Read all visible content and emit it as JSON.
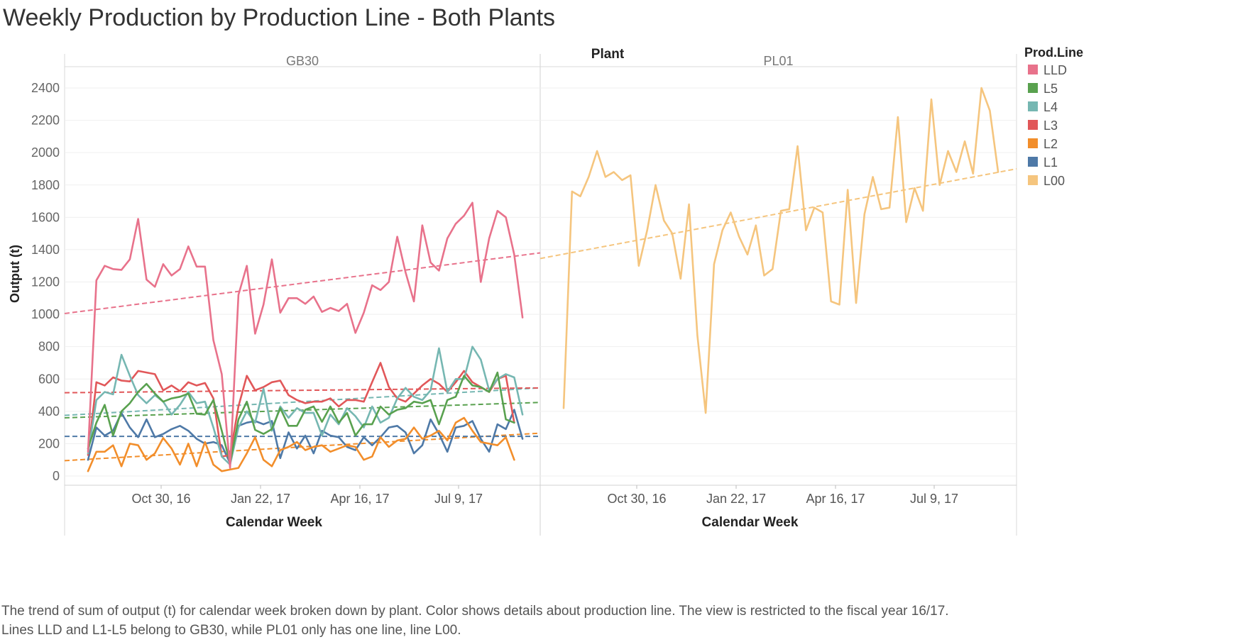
{
  "title": "Weekly Production by Production Line - Both Plants",
  "caption": {
    "line1": "The trend of sum of output (t) for calendar week broken down by plant.  Color shows details about production line. The view is restricted to the fiscal year 16/17.",
    "line2": "Lines LLD and L1-L5 belong to GB30, while PL01 only has one line, line L00."
  },
  "chart_data": {
    "type": "line",
    "column_header": "Plant",
    "panels": [
      "GB30",
      "PL01"
    ],
    "xlabel": "Calendar Week",
    "ylabel": "Output (t)",
    "ylim": [
      -55,
      2600
    ],
    "yticks": [
      0,
      200,
      400,
      600,
      800,
      1000,
      1200,
      1400,
      1600,
      1800,
      2000,
      2200,
      2400
    ],
    "xticks": [
      "Oct 30, 16",
      "Jan 22, 17",
      "Apr 16, 17",
      "Jul 9, 17"
    ],
    "legend_title": "Prod.Line",
    "legend_position": "right",
    "grid": true,
    "trend_lines": true,
    "series": [
      {
        "name": "LLD",
        "panel": 0,
        "color": "#e8728b",
        "values": [
          150,
          1210,
          1300,
          1280,
          1275,
          1340,
          1590,
          1215,
          1170,
          1310,
          1240,
          1280,
          1420,
          1295,
          1295,
          840,
          630,
          50,
          1120,
          1300,
          880,
          1060,
          1340,
          1010,
          1100,
          1100,
          1065,
          1110,
          1015,
          1040,
          1020,
          1065,
          885,
          1010,
          1180,
          1150,
          1200,
          1480,
          1260,
          1080,
          1550,
          1320,
          1270,
          1470,
          1560,
          1610,
          1690,
          1200,
          1470,
          1640,
          1600,
          1370,
          980
        ],
        "trend": [
          1005,
          1380
        ]
      },
      {
        "name": "L5",
        "panel": 0,
        "color": "#59a14f",
        "values": [
          170,
          330,
          440,
          250,
          400,
          450,
          520,
          570,
          510,
          460,
          480,
          490,
          510,
          385,
          380,
          470,
          280,
          80,
          350,
          460,
          285,
          260,
          290,
          420,
          310,
          310,
          410,
          430,
          335,
          430,
          330,
          390,
          250,
          320,
          320,
          430,
          380,
          410,
          420,
          460,
          450,
          470,
          320,
          470,
          490,
          620,
          560,
          550,
          520,
          640,
          350,
          330
        ],
        "trend": [
          360,
          455
        ]
      },
      {
        "name": "L4",
        "panel": 0,
        "color": "#76b7b2",
        "values": [
          140,
          470,
          520,
          505,
          750,
          620,
          500,
          450,
          500,
          460,
          380,
          440,
          520,
          450,
          460,
          300,
          120,
          70,
          300,
          400,
          330,
          540,
          280,
          430,
          360,
          420,
          390,
          390,
          250,
          380,
          320,
          420,
          370,
          300,
          430,
          330,
          360,
          480,
          545,
          490,
          470,
          530,
          790,
          520,
          600,
          600,
          800,
          720,
          530,
          600,
          630,
          610,
          380
        ],
        "trend": [
          375,
          545
        ]
      },
      {
        "name": "L3",
        "panel": 0,
        "color": "#e15759",
        "values": [
          130,
          580,
          560,
          610,
          590,
          585,
          650,
          640,
          630,
          530,
          560,
          525,
          580,
          560,
          575,
          480,
          120,
          130,
          430,
          620,
          530,
          550,
          580,
          590,
          500,
          470,
          450,
          460,
          460,
          480,
          430,
          470,
          470,
          460,
          580,
          700,
          550,
          480,
          460,
          510,
          560,
          600,
          570,
          520,
          580,
          650,
          580,
          550,
          520,
          600,
          620,
          330
        ],
        "trend": [
          515,
          545
        ]
      },
      {
        "name": "L2",
        "panel": 0,
        "color": "#f28e2b",
        "values": [
          30,
          150,
          150,
          190,
          60,
          200,
          190,
          100,
          140,
          235,
          170,
          70,
          200,
          60,
          210,
          70,
          30,
          40,
          50,
          140,
          240,
          100,
          60,
          160,
          180,
          210,
          160,
          180,
          190,
          150,
          170,
          190,
          180,
          100,
          120,
          240,
          180,
          220,
          230,
          300,
          230,
          250,
          280,
          220,
          330,
          360,
          280,
          210,
          200,
          190,
          240,
          100
        ],
        "trend": [
          95,
          265
        ]
      },
      {
        "name": "L1",
        "panel": 0,
        "color": "#4e79a7",
        "values": [
          100,
          300,
          250,
          280,
          390,
          300,
          240,
          350,
          240,
          260,
          290,
          310,
          280,
          230,
          200,
          210,
          190,
          80,
          310,
          330,
          340,
          320,
          340,
          110,
          270,
          170,
          250,
          140,
          280,
          250,
          240,
          180,
          160,
          240,
          190,
          240,
          300,
          310,
          270,
          140,
          190,
          350,
          260,
          150,
          300,
          310,
          340,
          230,
          150,
          320,
          290,
          410,
          230
        ],
        "trend": [
          245,
          245
        ]
      },
      {
        "name": "L00",
        "panel": 1,
        "color": "#f5c57e",
        "values": [
          420,
          1760,
          1730,
          1850,
          2010,
          1850,
          1880,
          1830,
          1860,
          1300,
          1520,
          1800,
          1580,
          1500,
          1220,
          1680,
          870,
          390,
          1310,
          1520,
          1630,
          1480,
          1370,
          1550,
          1240,
          1280,
          1640,
          1650,
          2040,
          1520,
          1660,
          1630,
          1080,
          1060,
          1770,
          1070,
          1620,
          1850,
          1650,
          1660,
          2220,
          1570,
          1780,
          1640,
          2330,
          1800,
          2010,
          1880,
          2070,
          1870,
          2400,
          2260,
          1880
        ],
        "trend": [
          1345,
          1900
        ]
      }
    ]
  }
}
